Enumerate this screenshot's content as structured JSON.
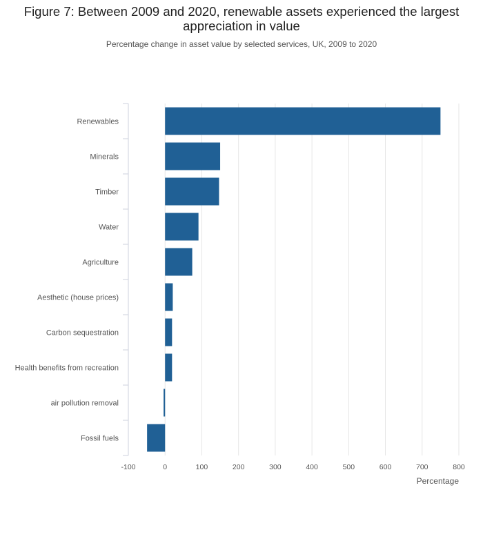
{
  "figure": {
    "title": "Figure 7: Between 2009 and 2020, renewable assets experienced the largest appreciation in value",
    "subtitle": "Percentage change in asset value by selected services, UK, 2009 to 2020"
  },
  "chart_data": {
    "type": "bar",
    "orientation": "horizontal",
    "title": "Figure 7: Between 2009 and 2020, renewable assets experienced the largest appreciation in value",
    "subtitle": "Percentage change in asset value by selected services, UK, 2009 to 2020",
    "xlabel": "Percentage",
    "ylabel": "",
    "categories": [
      "Renewables",
      "Minerals",
      "Timber",
      "Water",
      "Agriculture",
      "Aesthetic (house prices)",
      "Carbon sequestration",
      "Health benefits from recreation",
      "air pollution removal",
      "Fossil fuels"
    ],
    "values": [
      750,
      150,
      147,
      91,
      74,
      21,
      19,
      19,
      -4,
      -49
    ],
    "xlim": [
      -100,
      800
    ],
    "ticks": [
      -100,
      0,
      100,
      200,
      300,
      400,
      500,
      600,
      700,
      800
    ],
    "tick_labels": [
      "-100",
      "0",
      "100",
      "200",
      "300",
      "400",
      "500",
      "600",
      "700",
      "800"
    ],
    "grid": true,
    "bar_color": "#206095",
    "grid_color": "#e6e6e6",
    "axis_color": "#ccd1de"
  }
}
